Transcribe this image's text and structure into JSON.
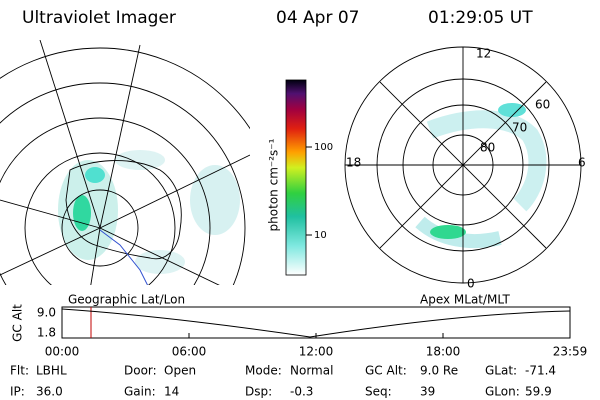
{
  "header": {
    "title": "Ultraviolet Imager",
    "date": "04 Apr 07",
    "time": "01:29:05 UT"
  },
  "colorbar": {
    "label": "photon cm⁻²s⁻¹",
    "ticks": [
      "100",
      "10"
    ]
  },
  "polar": {
    "mlt_labels": [
      "12",
      "18",
      "6",
      "0"
    ],
    "mlat_labels": [
      "60",
      "70",
      "80"
    ]
  },
  "altitude_plot": {
    "left_label": "Geographic Lat/Lon",
    "right_label": "Apex MLat/MLT",
    "axis_label": "GC Alt",
    "yticks": [
      "9.0",
      "1.8"
    ],
    "xticks": [
      "00:00",
      "06:00",
      "12:00",
      "18:00",
      "23:59"
    ]
  },
  "info": [
    [
      {
        "label": "Flt:",
        "value": "LBHL"
      },
      {
        "label": "Door:",
        "value": "Open"
      },
      {
        "label": "Mode:",
        "value": "Normal"
      },
      {
        "label": "GC Alt:",
        "value": "9.0 Re"
      },
      {
        "label": "GLat:",
        "value": "-71.4"
      }
    ],
    [
      {
        "label": "IP:",
        "value": "36.0"
      },
      {
        "label": "Gain:",
        "value": "14"
      },
      {
        "label": "Dsp:",
        "value": "-0.3"
      },
      {
        "label": "Seq:",
        "value": "39"
      },
      {
        "label": "GLon:",
        "value": "59.9"
      }
    ]
  ]
}
